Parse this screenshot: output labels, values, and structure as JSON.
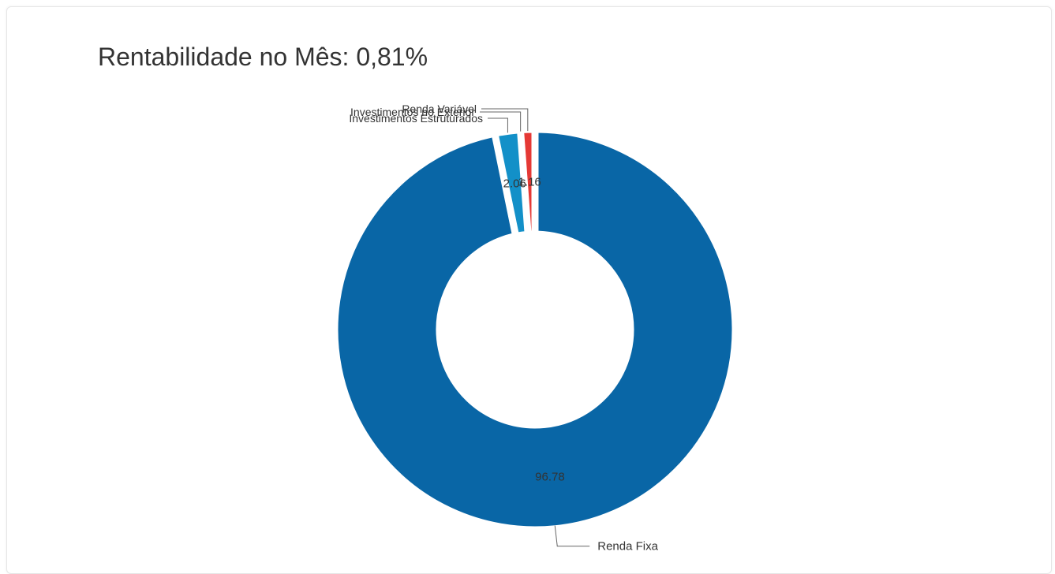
{
  "chart_data": {
    "type": "pie",
    "variant": "donut",
    "title": "Rentabilidade no Mês: 0,81%",
    "labels": [
      "Renda Fixa",
      "Investimentos Estruturados",
      "Investimentos no Exterior",
      "Renda Variável"
    ],
    "values": [
      96.78,
      2.06,
      0.0,
      1.16
    ],
    "value_labels": [
      "96.78",
      "2.06",
      "",
      "1.16"
    ],
    "colors": [
      "#0966a6",
      "#1390c8",
      "#f39c12",
      "#e53935"
    ],
    "legend": "none"
  }
}
